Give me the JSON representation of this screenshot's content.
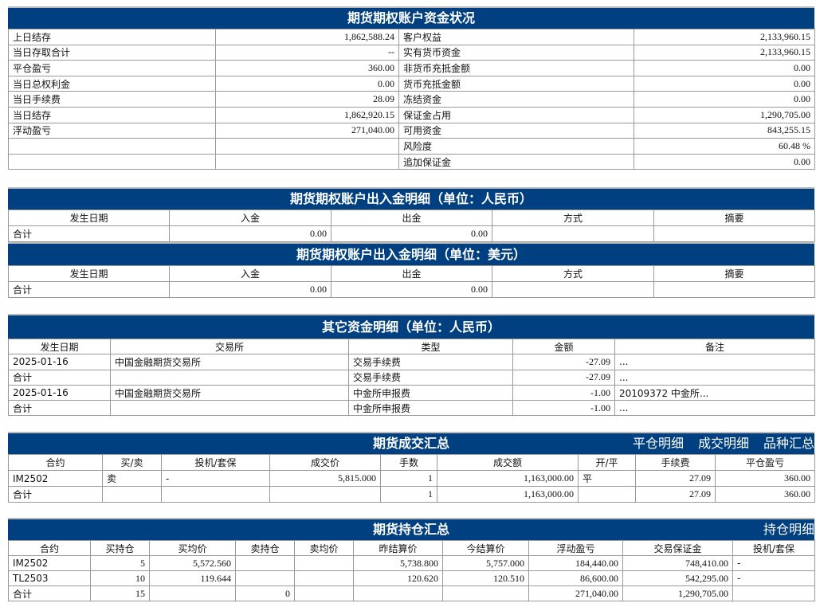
{
  "colors": {
    "header_bg": "#004080",
    "header_text": "#ffffff",
    "border": "#999999"
  },
  "summary": {
    "title": "期货期权账户资金状况",
    "rows": [
      [
        "上日结存",
        "1,862,588.24",
        "客户权益",
        "2,133,960.15"
      ],
      [
        "当日存取合计",
        "--",
        "实有货币资金",
        "2,133,960.15"
      ],
      [
        "平仓盈亏",
        "360.00",
        "非货币充抵金额",
        "0.00"
      ],
      [
        "当日总权利金",
        "0.00",
        "货币充抵金额",
        "0.00"
      ],
      [
        "当日手续费",
        "28.09",
        "冻结资金",
        "0.00"
      ],
      [
        "当日结存",
        "1,862,920.15",
        "保证金占用",
        "1,290,705.00"
      ],
      [
        "浮动盈亏",
        "271,040.00",
        "可用资金",
        "843,255.15"
      ],
      [
        "",
        "",
        "风险度",
        "60.48 %"
      ],
      [
        "",
        "",
        "追加保证金",
        "0.00"
      ]
    ]
  },
  "cash_cny": {
    "title": "期货期权账户出入金明细（单位：人民币）",
    "columns": [
      "发生日期",
      "入金",
      "出金",
      "方式",
      "摘要"
    ],
    "rows": [
      [
        "合计",
        "0.00",
        "0.00",
        "",
        ""
      ]
    ]
  },
  "cash_usd": {
    "title": "期货期权账户出入金明细（单位：美元）",
    "columns": [
      "发生日期",
      "入金",
      "出金",
      "方式",
      "摘要"
    ],
    "rows": [
      [
        "合计",
        "0.00",
        "0.00",
        "",
        ""
      ]
    ]
  },
  "other": {
    "title": "其它资金明细（单位：人民币）",
    "columns": [
      "发生日期",
      "交易所",
      "类型",
      "金额",
      "备注"
    ],
    "rows": [
      [
        "2025-01-16",
        "中国金融期货交易所",
        "交易手续费",
        "-27.09",
        "..."
      ],
      [
        "合计",
        "",
        "交易手续费",
        "-27.09",
        "..."
      ],
      [
        "2025-01-16",
        "中国金融期货交易所",
        "中金所申报费",
        "-1.00",
        "20109372 中金所..."
      ],
      [
        "合计",
        "",
        "中金所申报费",
        "-1.00",
        "..."
      ]
    ]
  },
  "trades": {
    "title": "期货成交汇总",
    "links": [
      "平仓明细",
      "成交明细",
      "品种汇总"
    ],
    "columns": [
      "合约",
      "买/卖",
      "投机/套保",
      "成交价",
      "手数",
      "成交额",
      "开/平",
      "手续费",
      "平仓盈亏"
    ],
    "rows": [
      [
        "IM2502",
        "卖",
        "-",
        "5,815.000",
        "1",
        "1,163,000.00",
        "平",
        "27.09",
        "360.00"
      ],
      [
        "合计",
        "",
        "",
        "",
        "1",
        "1,163,000.00",
        "",
        "27.09",
        "360.00"
      ]
    ]
  },
  "positions": {
    "title": "期货持仓汇总",
    "links": [
      "持仓明细"
    ],
    "columns": [
      "合约",
      "买持仓",
      "买均价",
      "卖持仓",
      "卖均价",
      "昨结算价",
      "今结算价",
      "浮动盈亏",
      "交易保证金",
      "投机/套保"
    ],
    "rows": [
      [
        "IM2502",
        "5",
        "5,572.560",
        "",
        "",
        "5,738.800",
        "5,757.000",
        "184,440.00",
        "748,410.00",
        "-"
      ],
      [
        "TL2503",
        "10",
        "119.644",
        "",
        "",
        "120.620",
        "120.510",
        "86,600.00",
        "542,295.00",
        "-"
      ],
      [
        "合计",
        "15",
        "",
        "0",
        "",
        "",
        "",
        "271,040.00",
        "1,290,705.00",
        ""
      ]
    ]
  }
}
